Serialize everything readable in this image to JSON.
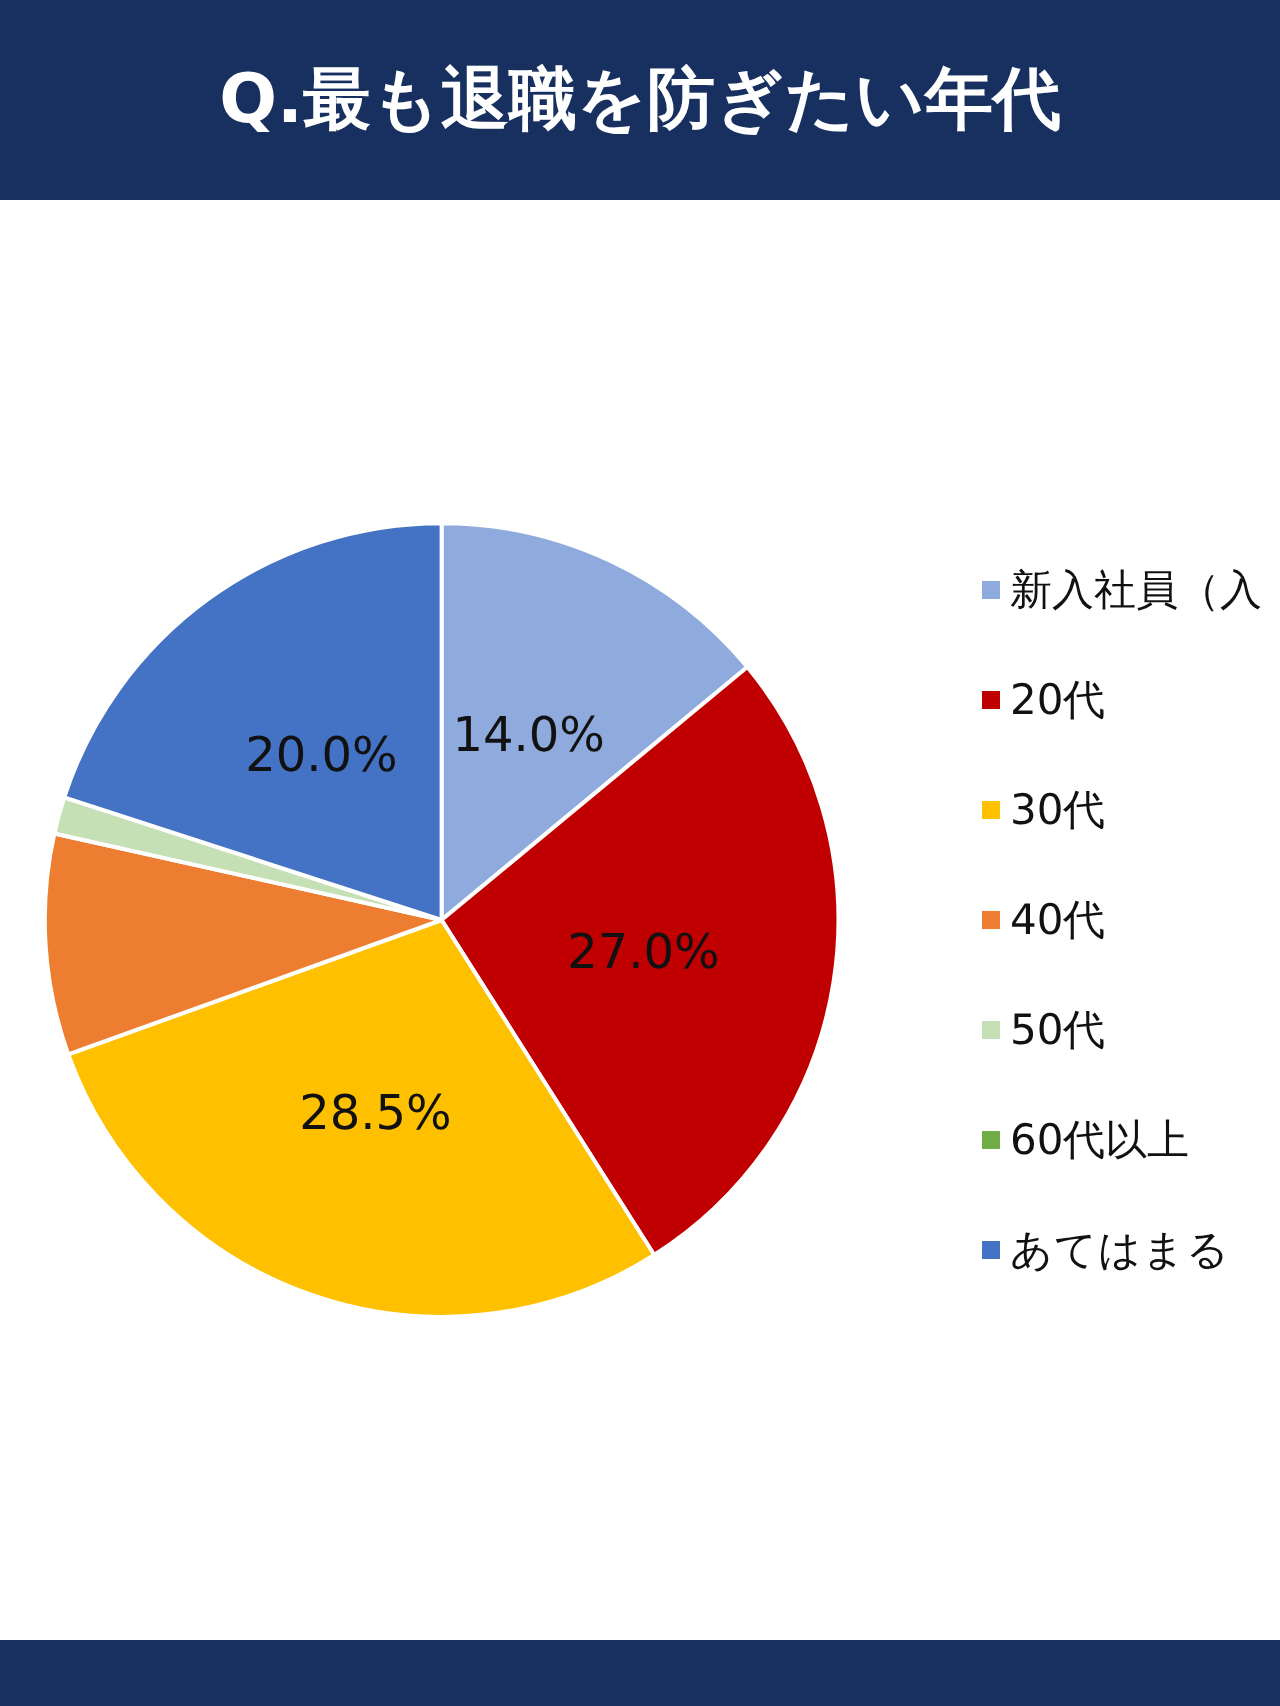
{
  "chart_data": {
    "type": "pie",
    "title": "Q.最も退職を防ぎたい年代",
    "categories": [
      "新入社員（入",
      "20代",
      "30代",
      "40代",
      "50代",
      "60代以上",
      "あてはまる"
    ],
    "values": [
      14.0,
      27.0,
      28.5,
      9.0,
      1.5,
      0,
      20.0
    ],
    "colors": [
      "#8faadc",
      "#c00000",
      "#ffc000",
      "#ed7d31",
      "#c5e0b4",
      "#70ad47",
      "#4472c4"
    ],
    "value_labels": [
      "14.0%",
      "27.0%",
      "28.5%",
      null,
      null,
      null,
      "20.0%"
    ],
    "legend": "right"
  }
}
